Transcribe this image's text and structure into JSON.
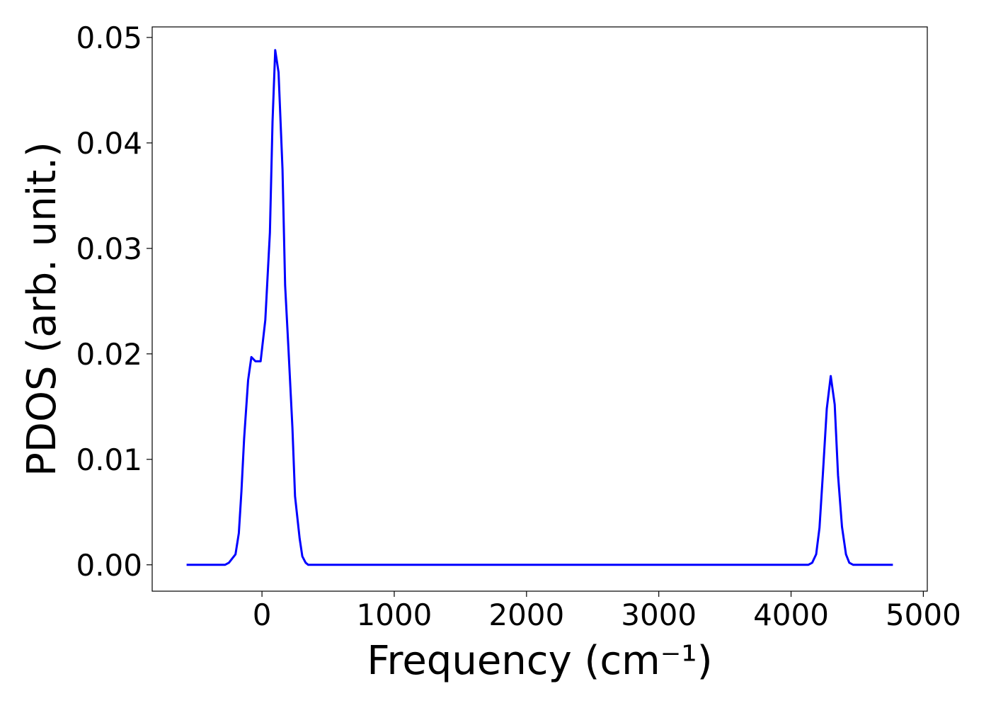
{
  "chart_data": {
    "type": "line",
    "title": "",
    "xlabel": "Frequency (cm⁻¹)",
    "ylabel": "PDOS (arb. unit.)",
    "xlim": [
      -830,
      5030
    ],
    "ylim": [
      -0.0025,
      0.051
    ],
    "xticks": [
      0,
      1000,
      2000,
      3000,
      4000,
      5000
    ],
    "xtick_labels": [
      "0",
      "1000",
      "2000",
      "3000",
      "4000",
      "5000"
    ],
    "yticks": [
      0.0,
      0.01,
      0.02,
      0.03,
      0.04,
      0.05
    ],
    "ytick_labels": [
      "0.00",
      "0.01",
      "0.02",
      "0.03",
      "0.04",
      "0.05"
    ],
    "grid": false,
    "legend": "none",
    "series": [
      {
        "color": "#0000ff",
        "x": [
          -570,
          -400,
          -280,
          -250,
          -200,
          -175,
          -155,
          -135,
          -105,
          -80,
          -50,
          -30,
          -10,
          25,
          60,
          80,
          100,
          125,
          155,
          175,
          200,
          230,
          250,
          285,
          305,
          330,
          350,
          375,
          400,
          500,
          1000,
          2000,
          3000,
          4000,
          4130,
          4160,
          4190,
          4215,
          4240,
          4270,
          4300,
          4330,
          4355,
          4385,
          4415,
          4440,
          4470,
          4500,
          4600,
          4770
        ],
        "y": [
          0.0,
          0.0,
          0.0,
          0.0002,
          0.001,
          0.003,
          0.007,
          0.012,
          0.0175,
          0.0197,
          0.0193,
          0.0193,
          0.0193,
          0.0232,
          0.0315,
          0.042,
          0.0488,
          0.0467,
          0.0375,
          0.0265,
          0.0205,
          0.013,
          0.0065,
          0.0025,
          0.0008,
          0.0002,
          0.0,
          0.0,
          0.0,
          0.0,
          0.0,
          0.0,
          0.0,
          0.0,
          0.0,
          0.0002,
          0.001,
          0.0035,
          0.0085,
          0.0148,
          0.0179,
          0.0152,
          0.0085,
          0.0036,
          0.001,
          0.0002,
          0.0,
          0.0,
          0.0,
          0.0
        ]
      }
    ]
  }
}
